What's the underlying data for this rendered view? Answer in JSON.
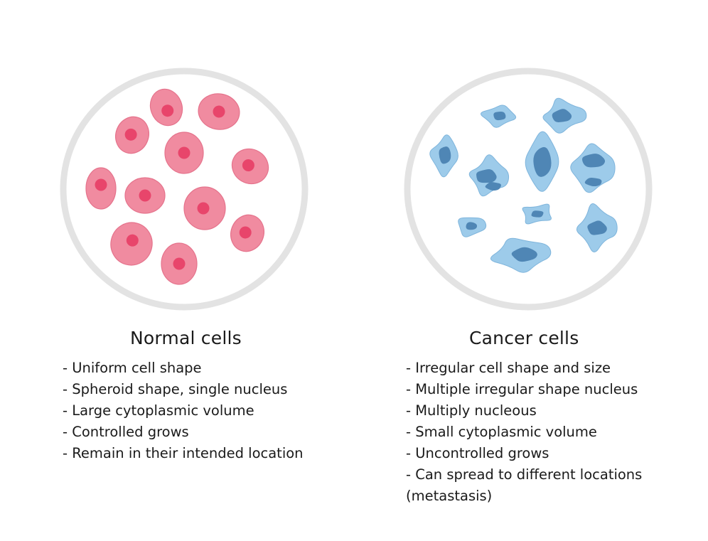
{
  "normal": {
    "title": "Normal cells",
    "items": [
      "- Uniform cell shape",
      "- Spheroid shape, single nucleus",
      "- Large cytoplasmic volume",
      "- Controlled grows",
      "- Remain in their intended location"
    ],
    "colors": {
      "cell": "#f08ba0",
      "cell_edge": "#e5738c",
      "nucleus": "#e8456b",
      "dish_ring": "#e3e3e3"
    }
  },
  "cancer": {
    "title": "Cancer cells",
    "items": [
      "- Irregular cell shape and size",
      "- Multiple irregular shape nucleus",
      "- Multiply nucleous",
      "- Small cytoplasmic volume",
      "- Uncontrolled grows",
      "- Can spread to different locations",
      "(metastasis)"
    ],
    "colors": {
      "cell": "#9dcbea",
      "cell_edge": "#7fb5dc",
      "nucleus": "#4f86b5",
      "dish_ring": "#e3e3e3"
    }
  }
}
